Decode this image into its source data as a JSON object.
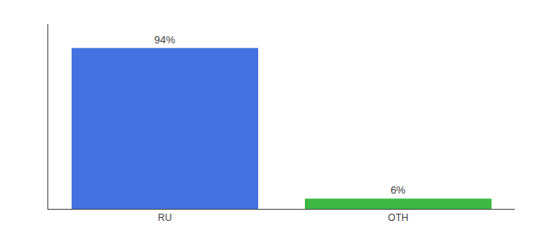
{
  "chart_data": {
    "type": "bar",
    "categories": [
      "RU",
      "OTH"
    ],
    "values": [
      94,
      6
    ],
    "value_labels": [
      "94%",
      "6%"
    ],
    "colors": [
      "#4472e0",
      "#3cb843"
    ],
    "ylim": [
      0,
      108
    ],
    "grid": false,
    "data_labels": true,
    "tick_labels": "x"
  }
}
